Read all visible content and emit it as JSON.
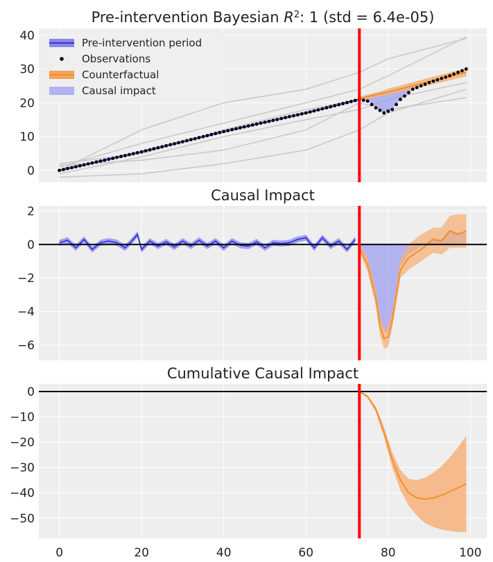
{
  "chart_data": [
    {
      "type": "line",
      "title": "Pre-intervention Bayesian R²: 1 (std = 6.4e-05)",
      "title_parts": {
        "prefix": "Pre-intervention Bayesian ",
        "var": "R",
        "sup": "2",
        "suffix": ": 1 (std = 6.4e-05)"
      },
      "xlim": [
        -5,
        104
      ],
      "ylim": [
        -3.5,
        42
      ],
      "x_ticks": [
        0,
        20,
        40,
        60,
        80,
        100
      ],
      "x_ticks_visible": false,
      "y_ticks": [
        0,
        10,
        20,
        30,
        40
      ],
      "grid": true,
      "legend_position": "upper-left",
      "intervention_x": 73,
      "legend": [
        {
          "label": "Pre-intervention period",
          "kind": "band-line",
          "color": "#3333dd"
        },
        {
          "label": "Observations",
          "kind": "marker",
          "color": "#000000"
        },
        {
          "label": "Counterfactual",
          "kind": "band-line",
          "color": "#f28e2b"
        },
        {
          "label": "Causal impact",
          "kind": "fill",
          "color": "#9999ee"
        }
      ],
      "controls": [
        {
          "x": [
            0,
            20,
            40,
            60,
            73,
            80,
            99
          ],
          "y": [
            2,
            5,
            12,
            18,
            21,
            24,
            30
          ]
        },
        {
          "x": [
            0,
            20,
            40,
            60,
            73,
            80,
            99
          ],
          "y": [
            1,
            8,
            14,
            20,
            24,
            28,
            39.5
          ]
        },
        {
          "x": [
            0,
            20,
            40,
            60,
            73,
            80,
            99
          ],
          "y": [
            0,
            12,
            20,
            24,
            29,
            33,
            39
          ]
        },
        {
          "x": [
            0,
            20,
            40,
            60,
            73,
            80,
            99
          ],
          "y": [
            -1,
            4,
            10,
            15,
            18,
            21,
            26
          ]
        },
        {
          "x": [
            0,
            20,
            40,
            60,
            73,
            80,
            99
          ],
          "y": [
            -2,
            -1,
            2,
            6,
            12,
            17,
            24
          ]
        },
        {
          "x": [
            0,
            20,
            40,
            60,
            73,
            80,
            99
          ],
          "y": [
            1.5,
            3,
            6,
            12,
            20,
            18,
            21.5
          ]
        }
      ],
      "observations": [
        {
          "x": 0,
          "y": 0
        },
        {
          "x": 20,
          "y": 5.5
        },
        {
          "x": 40,
          "y": 11.5
        },
        {
          "x": 60,
          "y": 17
        },
        {
          "x": 73,
          "y": 21
        },
        {
          "x": 75,
          "y": 20.5
        },
        {
          "x": 77,
          "y": 18.5
        },
        {
          "x": 79,
          "y": 17
        },
        {
          "x": 81,
          "y": 18
        },
        {
          "x": 83,
          "y": 21
        },
        {
          "x": 86,
          "y": 24
        },
        {
          "x": 90,
          "y": 26
        },
        {
          "x": 95,
          "y": 28
        },
        {
          "x": 99,
          "y": 30
        }
      ],
      "counterfactual_x": [
        73,
        80,
        90,
        99
      ],
      "counterfactual_y": [
        21.3,
        23.2,
        26.3,
        29
      ],
      "counterfactual_lower": [
        20.8,
        22.4,
        25.2,
        27.8
      ],
      "counterfactual_upper": [
        21.8,
        24,
        27.4,
        30.2
      ]
    },
    {
      "type": "line",
      "title": "Causal Impact",
      "xlim": [
        -5,
        104
      ],
      "ylim": [
        -6.9,
        2.3
      ],
      "x_ticks": [
        0,
        20,
        40,
        60,
        80,
        100
      ],
      "x_ticks_visible": false,
      "y_ticks": [
        -6,
        -4,
        -2,
        0,
        2
      ],
      "grid": true,
      "zero_line": true,
      "intervention_x": 73,
      "pre_x": [
        0,
        2,
        4,
        6,
        8,
        10,
        12,
        14,
        16,
        18,
        19,
        20,
        22,
        24,
        26,
        28,
        30,
        32,
        34,
        36,
        38,
        40,
        42,
        44,
        46,
        48,
        50,
        52,
        54,
        56,
        58,
        60,
        62,
        64,
        66,
        68,
        70,
        72
      ],
      "pre_y": [
        0.1,
        0.25,
        -0.2,
        0.3,
        -0.3,
        0.1,
        0.2,
        0.1,
        -0.2,
        0.3,
        0.6,
        -0.3,
        0.2,
        -0.1,
        0.15,
        -0.15,
        0.2,
        -0.1,
        0.25,
        -0.1,
        0.2,
        -0.2,
        0.2,
        -0.05,
        -0.1,
        0.15,
        -0.2,
        0.1,
        0.05,
        0.1,
        0.3,
        0.4,
        -0.2,
        0.4,
        -0.1,
        0.2,
        -0.3,
        0.3
      ],
      "post_x": [
        73,
        75,
        77,
        78,
        79,
        80,
        81,
        83,
        85,
        88,
        91,
        93,
        95,
        97,
        99
      ],
      "post_y": [
        -0.2,
        -1.2,
        -3.2,
        -4.8,
        -5.6,
        -5.5,
        -4.5,
        -1.5,
        -0.8,
        -0.3,
        0.3,
        0.2,
        0.8,
        0.6,
        0.8
      ],
      "post_lower": [
        -0.5,
        -1.6,
        -3.7,
        -5.4,
        -6.2,
        -6.1,
        -5.0,
        -2.0,
        -1.5,
        -1.0,
        -0.5,
        -0.6,
        -0.2,
        -0.2,
        -0.2
      ],
      "post_upper": [
        0.1,
        -0.8,
        -2.7,
        -4.2,
        -5.0,
        -4.9,
        -4.0,
        -0.9,
        0.0,
        0.6,
        1.0,
        1.0,
        1.7,
        1.8,
        1.8
      ],
      "impact_upper": [
        -0.1,
        -1.0,
        -3.0,
        -4.6,
        -5.2,
        -5.2,
        -4.3,
        -1.3,
        -0.6,
        -0.1,
        0.4,
        0.3,
        0.9,
        0.7,
        0.8
      ]
    },
    {
      "type": "line",
      "title": "Cumulative Causal Impact",
      "xlim": [
        -5,
        104
      ],
      "ylim": [
        -58,
        3
      ],
      "x_ticks": [
        0,
        20,
        40,
        60,
        80,
        100
      ],
      "y_ticks": [
        -50,
        -40,
        -30,
        -20,
        -10,
        0
      ],
      "grid": true,
      "zero_line": true,
      "intervention_x": 73,
      "x": [
        73,
        75,
        77,
        79,
        81,
        83,
        85,
        87,
        89,
        91,
        93,
        95,
        97,
        99
      ],
      "y": [
        0,
        -2,
        -7,
        -16,
        -27,
        -35,
        -40,
        -42,
        -42.5,
        -42,
        -41,
        -39.5,
        -38,
        -36.5
      ],
      "lower": [
        0,
        -2.5,
        -8,
        -18,
        -30,
        -39,
        -45,
        -49,
        -52,
        -53.5,
        -54.5,
        -55,
        -55.5,
        -55.5
      ],
      "upper": [
        0,
        -1.5,
        -6,
        -14,
        -24,
        -31,
        -34.5,
        -35,
        -34,
        -32,
        -29.5,
        -26,
        -22,
        -17.5
      ]
    }
  ]
}
